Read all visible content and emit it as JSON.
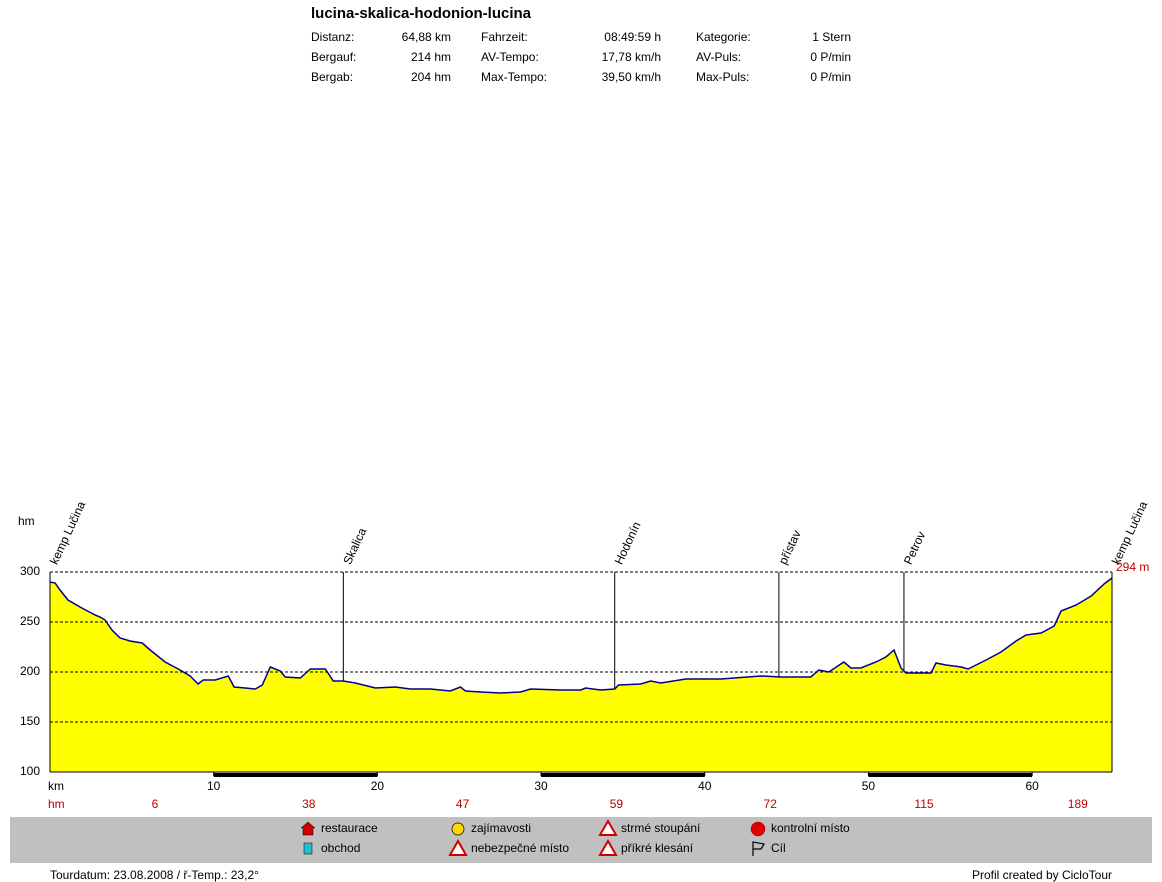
{
  "chart_data": {
    "type": "area",
    "title": "lucina-skalica-hodonion-lucina",
    "stats": [
      [
        {
          "label": "Distanz:",
          "value": "64,88 km"
        },
        {
          "label": "Bergauf:",
          "value": "214 hm"
        },
        {
          "label": "Bergab:",
          "value": "204 hm"
        }
      ],
      [
        {
          "label": "Fahrzeit:",
          "value": "08:49:59 h"
        },
        {
          "label": "AV-Tempo:",
          "value": "17,78 km/h"
        },
        {
          "label": "Max-Tempo:",
          "value": "39,50 km/h"
        }
      ],
      [
        {
          "label": "Kategorie:",
          "value": "1 Stern"
        },
        {
          "label": "AV-Puls:",
          "value": "0 P/min"
        },
        {
          "label": "Max-Puls:",
          "value": "0 P/min"
        }
      ]
    ],
    "ylabel": "hm",
    "xlabel": "km",
    "x": [
      0,
      0.31,
      0.61,
      1.1,
      1.83,
      2.75,
      3.06,
      3.36,
      3.79,
      4.28,
      4.89,
      5.63,
      6.12,
      7.03,
      7.95,
      8.56,
      9.05,
      9.36,
      10.09,
      10.89,
      11.25,
      11.93,
      12.54,
      12.97,
      13.46,
      14.07,
      14.37,
      15.29,
      15.9,
      16.82,
      17.31,
      17.92,
      18.65,
      19.88,
      21.1,
      22.02,
      23.24,
      24.46,
      25.08,
      25.38,
      26.3,
      27.52,
      28.75,
      29.36,
      31.19,
      32.42,
      32.72,
      33.64,
      34.5,
      34.74,
      36.09,
      36.7,
      37.31,
      38.84,
      40.98,
      43.43,
      44.65,
      46.48,
      46.97,
      47.58,
      48.5,
      48.93,
      49.54,
      50.46,
      51.07,
      51.56,
      51.99,
      52.29,
      53.82,
      54.13,
      54.74,
      55.66,
      56.09,
      57.19,
      58.1,
      59.02,
      59.63,
      60.55,
      61.35,
      61.77,
      62.69,
      63.61,
      64.4,
      64.88
    ],
    "values": [
      290,
      289,
      282,
      272,
      265,
      257,
      255,
      252,
      242,
      234,
      231,
      229,
      222,
      210,
      202,
      196,
      188,
      192,
      192,
      196,
      185,
      184,
      183,
      187,
      205,
      201,
      195,
      194,
      203,
      203,
      191,
      191,
      189,
      184,
      185,
      183,
      183,
      181,
      185,
      181,
      180,
      179,
      180,
      183,
      182,
      182,
      184,
      182,
      183,
      187,
      188,
      191,
      189,
      193,
      193,
      196,
      195,
      195,
      202,
      200,
      210,
      204,
      204,
      210,
      215,
      222,
      204,
      199,
      199,
      209,
      207,
      205,
      203,
      212,
      220,
      231,
      237,
      239,
      246,
      261,
      267,
      276,
      288,
      294
    ],
    "color": "#ffff00",
    "line_color": "#000090",
    "end_label": {
      "value": 294,
      "label": "294 m"
    },
    "markers": [
      {
        "label": "kemp Lučina",
        "x": 0
      },
      {
        "label": "Skalica",
        "x": 17.92
      },
      {
        "label": "Hodonín",
        "x": 34.5
      },
      {
        "label": "přístav",
        "x": 44.53
      },
      {
        "label": "Petrov",
        "x": 52.17
      },
      {
        "label": "kemp Lučina",
        "x": 64.88
      }
    ],
    "xlim": [
      0,
      64.88
    ],
    "ylim": [
      100,
      300
    ],
    "xticks": [
      10,
      20,
      30,
      40,
      50,
      60
    ],
    "yticks": [
      100,
      150,
      200,
      250,
      300
    ],
    "grid": true,
    "climb_label": "hm",
    "climb_values": [
      6,
      38,
      47,
      59,
      72,
      115,
      189
    ],
    "legend_items": [
      "restaurace",
      "obchod",
      "zajímavosti",
      "nebezpečné místo",
      "strmé stoupání",
      "příkré klesání",
      "kontrolní místo",
      "Cíl"
    ],
    "footer_left": "Tourdatum: 23.08.2008  /  ř-Temp.: 23,2°",
    "footer_right": "Profil created by CicloTour"
  }
}
